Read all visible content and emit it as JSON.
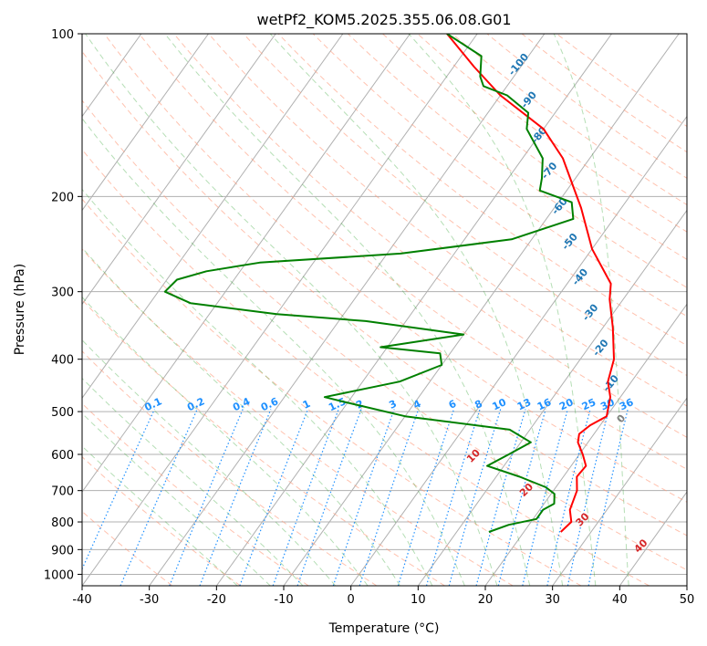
{
  "chart_data": {
    "type": "skew-t",
    "title": "wetPf2_KOM5.2025.355.06.08.G01",
    "xlabel": "Temperature (°C)",
    "ylabel": "Pressure (hPa)",
    "xlim": [
      -40,
      50
    ],
    "ylim": [
      1050,
      100
    ],
    "x_ticks": [
      -40,
      -30,
      -20,
      -10,
      0,
      10,
      20,
      30,
      40,
      50
    ],
    "y_ticks": [
      100,
      200,
      300,
      400,
      500,
      600,
      700,
      800,
      900,
      1000
    ],
    "colors": {
      "temperature": "#ff0000",
      "dewpoint": "#008000",
      "dry_adiabat": "#ff7f50",
      "moist_adiabat": "#2ca02c",
      "mixing_ratio": "#1e90ff",
      "isotherm": "#808080",
      "label_blue": "#1f77b4",
      "label_red": "#d62728"
    },
    "series": [
      {
        "name": "Temperature",
        "color": "#ff0000",
        "points": [
          {
            "p": 835,
            "t": 25.5
          },
          {
            "p": 800,
            "t": 26.0
          },
          {
            "p": 760,
            "t": 24.5
          },
          {
            "p": 700,
            "t": 23.5
          },
          {
            "p": 660,
            "t": 22.0
          },
          {
            "p": 630,
            "t": 22.2
          },
          {
            "p": 600,
            "t": 20.5
          },
          {
            "p": 570,
            "t": 18.5
          },
          {
            "p": 550,
            "t": 17.8
          },
          {
            "p": 530,
            "t": 18.5
          },
          {
            "p": 510,
            "t": 20.0
          },
          {
            "p": 470,
            "t": 18.5
          },
          {
            "p": 440,
            "t": 16.5
          },
          {
            "p": 400,
            "t": 15.0
          },
          {
            "p": 350,
            "t": 11.5
          },
          {
            "p": 310,
            "t": 8.0
          },
          {
            "p": 290,
            "t": 6.5
          },
          {
            "p": 250,
            "t": 0.0
          },
          {
            "p": 210,
            "t": -6.0
          },
          {
            "p": 170,
            "t": -14.0
          },
          {
            "p": 150,
            "t": -20.0
          },
          {
            "p": 130,
            "t": -30.0
          },
          {
            "p": 115,
            "t": -37.0
          },
          {
            "p": 100,
            "t": -44.5
          }
        ]
      },
      {
        "name": "Dewpoint",
        "color": "#008000",
        "points": [
          {
            "p": 835,
            "t": 14.8
          },
          {
            "p": 810,
            "t": 17.0
          },
          {
            "p": 790,
            "t": 20.5
          },
          {
            "p": 760,
            "t": 20.5
          },
          {
            "p": 740,
            "t": 21.5
          },
          {
            "p": 710,
            "t": 20.5
          },
          {
            "p": 690,
            "t": 18.5
          },
          {
            "p": 660,
            "t": 13.5
          },
          {
            "p": 630,
            "t": 7.5
          },
          {
            "p": 600,
            "t": 9.5
          },
          {
            "p": 570,
            "t": 11.5
          },
          {
            "p": 540,
            "t": 7.0
          },
          {
            "p": 510,
            "t": -10.0
          },
          {
            "p": 480,
            "t": -20.5
          },
          {
            "p": 470,
            "t": -24.0
          },
          {
            "p": 440,
            "t": -14.5
          },
          {
            "p": 410,
            "t": -10.0
          },
          {
            "p": 390,
            "t": -11.5
          },
          {
            "p": 380,
            "t": -21.0
          },
          {
            "p": 360,
            "t": -10.0
          },
          {
            "p": 340,
            "t": -26.0
          },
          {
            "p": 330,
            "t": -40.0
          },
          {
            "p": 315,
            "t": -54.0
          },
          {
            "p": 300,
            "t": -59.0
          },
          {
            "p": 285,
            "t": -58.5
          },
          {
            "p": 275,
            "t": -55.0
          },
          {
            "p": 265,
            "t": -48.0
          },
          {
            "p": 255,
            "t": -28.0
          },
          {
            "p": 240,
            "t": -13.0
          },
          {
            "p": 220,
            "t": -6.0
          },
          {
            "p": 205,
            "t": -8.0
          },
          {
            "p": 195,
            "t": -14.0
          },
          {
            "p": 185,
            "t": -15.0
          },
          {
            "p": 170,
            "t": -17.0
          },
          {
            "p": 150,
            "t": -22.5
          },
          {
            "p": 140,
            "t": -24.0
          },
          {
            "p": 130,
            "t": -29.0
          },
          {
            "p": 125,
            "t": -33.5
          },
          {
            "p": 120,
            "t": -35.0
          },
          {
            "p": 110,
            "t": -37.0
          },
          {
            "p": 100,
            "t": -44.5
          }
        ]
      }
    ],
    "dry_adiabat_labels": [
      "10",
      "20",
      "30",
      "40"
    ],
    "moist_adiabat_labels": [
      "-100",
      "-90",
      "-80",
      "-70",
      "-60",
      "-50",
      "-40",
      "-30",
      "-20",
      "-10",
      "0"
    ],
    "mixing_ratio_labels": [
      "0.1",
      "0.2",
      "0.4",
      "0.6",
      "1",
      "1.5",
      "2",
      "3",
      "4",
      "6",
      "8",
      "10",
      "13",
      "16",
      "20",
      "25",
      "30",
      "36"
    ]
  }
}
